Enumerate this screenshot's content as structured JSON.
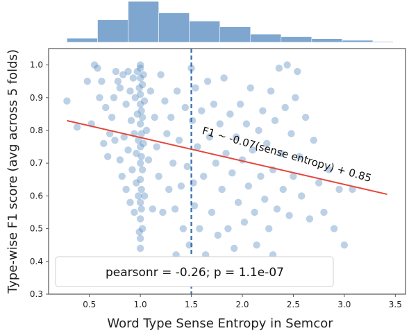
{
  "chart_data": {
    "type": "scatter",
    "xlabel": "Word Type Sense Entropy in Semcor",
    "ylabel": "Type-wise F1 score (avg across 5 folds)",
    "xlim": [
      0.1,
      3.6
    ],
    "ylim": [
      0.3,
      1.05
    ],
    "x_ticks": [
      0.5,
      1.0,
      1.5,
      2.0,
      2.5,
      3.0,
      3.5
    ],
    "x_tick_labels": [
      "0.5",
      "1.0",
      "1.5",
      "2.0",
      "2.5",
      "3.0",
      "3.5"
    ],
    "y_ticks": [
      0.3,
      0.4,
      0.5,
      0.6,
      0.7,
      0.8,
      0.9,
      1.0
    ],
    "y_tick_labels": [
      "0.3",
      "0.4",
      "0.5",
      "0.6",
      "0.7",
      "0.8",
      "0.9",
      "1.0"
    ],
    "grid": false,
    "colors": {
      "points": "#4f86bd",
      "hist": "#7ea6cf",
      "regression": "#e4453a",
      "mean_line": "#3b74b5"
    },
    "regression": {
      "slope": -0.07,
      "intercept": 0.85,
      "x_range": [
        0.28,
        3.42
      ],
      "y_range": [
        0.83,
        0.605
      ]
    },
    "regression_label": "F1 ~ -0.07(sense entropy) + 0.85",
    "mean_entropy_line_x": 1.5,
    "stats_label": "pearsonr = -0.26; p = 1.1e-07",
    "histogram": {
      "bin_edges": [
        0.28,
        0.58,
        0.88,
        1.18,
        1.48,
        1.78,
        2.08,
        2.38,
        2.68,
        2.98,
        3.28,
        3.48
      ],
      "relative_heights": [
        0.1,
        0.55,
        1.0,
        0.72,
        0.52,
        0.38,
        0.2,
        0.14,
        0.09,
        0.05,
        0.02
      ]
    },
    "points": [
      {
        "x": 0.28,
        "y": 0.89
      },
      {
        "x": 0.38,
        "y": 0.81
      },
      {
        "x": 0.48,
        "y": 0.95
      },
      {
        "x": 0.52,
        "y": 0.82
      },
      {
        "x": 0.55,
        "y": 1.0
      },
      {
        "x": 0.58,
        "y": 0.99
      },
      {
        "x": 0.6,
        "y": 0.9
      },
      {
        "x": 0.62,
        "y": 0.95
      },
      {
        "x": 0.64,
        "y": 0.76
      },
      {
        "x": 0.66,
        "y": 0.87
      },
      {
        "x": 0.68,
        "y": 0.72
      },
      {
        "x": 0.7,
        "y": 0.79
      },
      {
        "x": 0.72,
        "y": 0.84
      },
      {
        "x": 0.74,
        "y": 0.9
      },
      {
        "x": 0.75,
        "y": 0.77
      },
      {
        "x": 0.76,
        "y": 0.98
      },
      {
        "x": 0.78,
        "y": 0.95
      },
      {
        "x": 0.8,
        "y": 0.93
      },
      {
        "x": 0.8,
        "y": 0.71
      },
      {
        "x": 0.82,
        "y": 0.66
      },
      {
        "x": 0.83,
        "y": 0.97
      },
      {
        "x": 0.84,
        "y": 0.78
      },
      {
        "x": 0.86,
        "y": 0.62
      },
      {
        "x": 0.86,
        "y": 0.88
      },
      {
        "x": 0.88,
        "y": 0.98
      },
      {
        "x": 0.88,
        "y": 0.74
      },
      {
        "x": 0.9,
        "y": 0.58
      },
      {
        "x": 0.9,
        "y": 0.92
      },
      {
        "x": 0.91,
        "y": 0.83
      },
      {
        "x": 0.92,
        "y": 0.68
      },
      {
        "x": 0.93,
        "y": 0.96
      },
      {
        "x": 0.94,
        "y": 0.55
      },
      {
        "x": 0.94,
        "y": 0.79
      },
      {
        "x": 0.95,
        "y": 0.9
      },
      {
        "x": 0.96,
        "y": 0.64
      },
      {
        "x": 0.96,
        "y": 0.73
      },
      {
        "x": 0.97,
        "y": 0.98
      },
      {
        "x": 0.97,
        "y": 0.85
      },
      {
        "x": 0.98,
        "y": 0.6
      },
      {
        "x": 0.98,
        "y": 0.77
      },
      {
        "x": 0.99,
        "y": 0.49
      },
      {
        "x": 0.99,
        "y": 0.93
      },
      {
        "x": 1.0,
        "y": 1.0
      },
      {
        "x": 1.0,
        "y": 0.96
      },
      {
        "x": 1.0,
        "y": 0.88
      },
      {
        "x": 1.0,
        "y": 0.82
      },
      {
        "x": 1.0,
        "y": 0.75
      },
      {
        "x": 1.0,
        "y": 0.7
      },
      {
        "x": 1.0,
        "y": 0.65
      },
      {
        "x": 1.0,
        "y": 0.58
      },
      {
        "x": 1.0,
        "y": 0.53
      },
      {
        "x": 1.0,
        "y": 0.47
      },
      {
        "x": 1.0,
        "y": 0.44
      },
      {
        "x": 1.0,
        "y": 0.99
      },
      {
        "x": 1.0,
        "y": 0.91
      },
      {
        "x": 1.01,
        "y": 0.86
      },
      {
        "x": 1.01,
        "y": 0.79
      },
      {
        "x": 1.01,
        "y": 0.72
      },
      {
        "x": 1.01,
        "y": 0.62
      },
      {
        "x": 1.01,
        "y": 0.56
      },
      {
        "x": 1.02,
        "y": 0.94
      },
      {
        "x": 1.02,
        "y": 0.84
      },
      {
        "x": 1.02,
        "y": 0.68
      },
      {
        "x": 1.02,
        "y": 0.5
      },
      {
        "x": 1.03,
        "y": 0.97
      },
      {
        "x": 1.03,
        "y": 0.76
      },
      {
        "x": 1.04,
        "y": 0.6
      },
      {
        "x": 1.04,
        "y": 0.89
      },
      {
        "x": 1.06,
        "y": 0.8
      },
      {
        "x": 1.08,
        "y": 0.71
      },
      {
        "x": 1.1,
        "y": 0.92
      },
      {
        "x": 1.12,
        "y": 0.56
      },
      {
        "x": 1.14,
        "y": 0.84
      },
      {
        "x": 1.16,
        "y": 0.75
      },
      {
        "x": 1.18,
        "y": 0.66
      },
      {
        "x": 1.2,
        "y": 0.97
      },
      {
        "x": 1.22,
        "y": 0.55
      },
      {
        "x": 1.24,
        "y": 0.89
      },
      {
        "x": 1.26,
        "y": 0.79
      },
      {
        "x": 1.28,
        "y": 0.62
      },
      {
        "x": 1.3,
        "y": 0.84
      },
      {
        "x": 1.32,
        "y": 0.7
      },
      {
        "x": 1.34,
        "y": 0.56
      },
      {
        "x": 1.36,
        "y": 0.92
      },
      {
        "x": 1.38,
        "y": 0.77
      },
      {
        "x": 1.4,
        "y": 0.63
      },
      {
        "x": 1.42,
        "y": 0.5
      },
      {
        "x": 1.44,
        "y": 0.87
      },
      {
        "x": 1.46,
        "y": 0.69
      },
      {
        "x": 1.48,
        "y": 0.45
      },
      {
        "x": 1.5,
        "y": 0.99
      },
      {
        "x": 1.51,
        "y": 0.83
      },
      {
        "x": 1.52,
        "y": 0.64
      },
      {
        "x": 1.53,
        "y": 0.57
      },
      {
        "x": 1.54,
        "y": 0.93
      },
      {
        "x": 1.56,
        "y": 0.75
      },
      {
        "x": 1.58,
        "y": 0.5
      },
      {
        "x": 1.6,
        "y": 0.86
      },
      {
        "x": 1.62,
        "y": 0.66
      },
      {
        "x": 1.64,
        "y": 0.42
      },
      {
        "x": 1.66,
        "y": 0.95
      },
      {
        "x": 1.68,
        "y": 0.78
      },
      {
        "x": 1.7,
        "y": 0.55
      },
      {
        "x": 1.72,
        "y": 0.88
      },
      {
        "x": 1.74,
        "y": 0.7
      },
      {
        "x": 1.76,
        "y": 0.48
      },
      {
        "x": 1.78,
        "y": 0.82
      },
      {
        "x": 1.8,
        "y": 0.62
      },
      {
        "x": 1.82,
        "y": 0.96
      },
      {
        "x": 1.84,
        "y": 0.73
      },
      {
        "x": 1.86,
        "y": 0.5
      },
      {
        "x": 1.88,
        "y": 0.85
      },
      {
        "x": 1.9,
        "y": 0.67
      },
      {
        "x": 1.92,
        "y": 0.44
      },
      {
        "x": 1.94,
        "y": 0.78
      },
      {
        "x": 1.96,
        "y": 0.58
      },
      {
        "x": 1.98,
        "y": 0.88
      },
      {
        "x": 2.0,
        "y": 0.71
      },
      {
        "x": 2.02,
        "y": 0.52
      },
      {
        "x": 2.04,
        "y": 0.82
      },
      {
        "x": 2.06,
        "y": 0.63
      },
      {
        "x": 2.08,
        "y": 0.93
      },
      {
        "x": 2.1,
        "y": 0.74
      },
      {
        "x": 2.12,
        "y": 0.55
      },
      {
        "x": 2.14,
        "y": 0.45
      },
      {
        "x": 2.16,
        "y": 0.8
      },
      {
        "x": 2.18,
        "y": 0.66
      },
      {
        "x": 2.2,
        "y": 0.86
      },
      {
        "x": 2.22,
        "y": 0.59
      },
      {
        "x": 2.24,
        "y": 0.76
      },
      {
        "x": 2.26,
        "y": 0.5
      },
      {
        "x": 2.28,
        "y": 0.92
      },
      {
        "x": 2.3,
        "y": 0.68
      },
      {
        "x": 2.32,
        "y": 0.83
      },
      {
        "x": 2.34,
        "y": 0.56
      },
      {
        "x": 2.36,
        "y": 0.99
      },
      {
        "x": 2.38,
        "y": 0.73
      },
      {
        "x": 2.4,
        "y": 0.62
      },
      {
        "x": 2.42,
        "y": 0.87
      },
      {
        "x": 2.44,
        "y": 1.0
      },
      {
        "x": 2.46,
        "y": 0.54
      },
      {
        "x": 2.48,
        "y": 0.79
      },
      {
        "x": 2.5,
        "y": 0.66
      },
      {
        "x": 2.52,
        "y": 0.9
      },
      {
        "x": 2.54,
        "y": 0.98
      },
      {
        "x": 2.56,
        "y": 0.72
      },
      {
        "x": 2.58,
        "y": 0.6
      },
      {
        "x": 2.62,
        "y": 0.84
      },
      {
        "x": 2.66,
        "y": 0.53
      },
      {
        "x": 2.7,
        "y": 0.77
      },
      {
        "x": 2.75,
        "y": 0.64
      },
      {
        "x": 2.8,
        "y": 0.55
      },
      {
        "x": 2.85,
        "y": 0.68
      },
      {
        "x": 2.9,
        "y": 0.5
      },
      {
        "x": 2.95,
        "y": 0.62
      },
      {
        "x": 3.0,
        "y": 0.45
      },
      {
        "x": 3.08,
        "y": 0.62
      },
      {
        "x": 2.3,
        "y": 0.42
      },
      {
        "x": 1.35,
        "y": 0.42
      }
    ]
  }
}
